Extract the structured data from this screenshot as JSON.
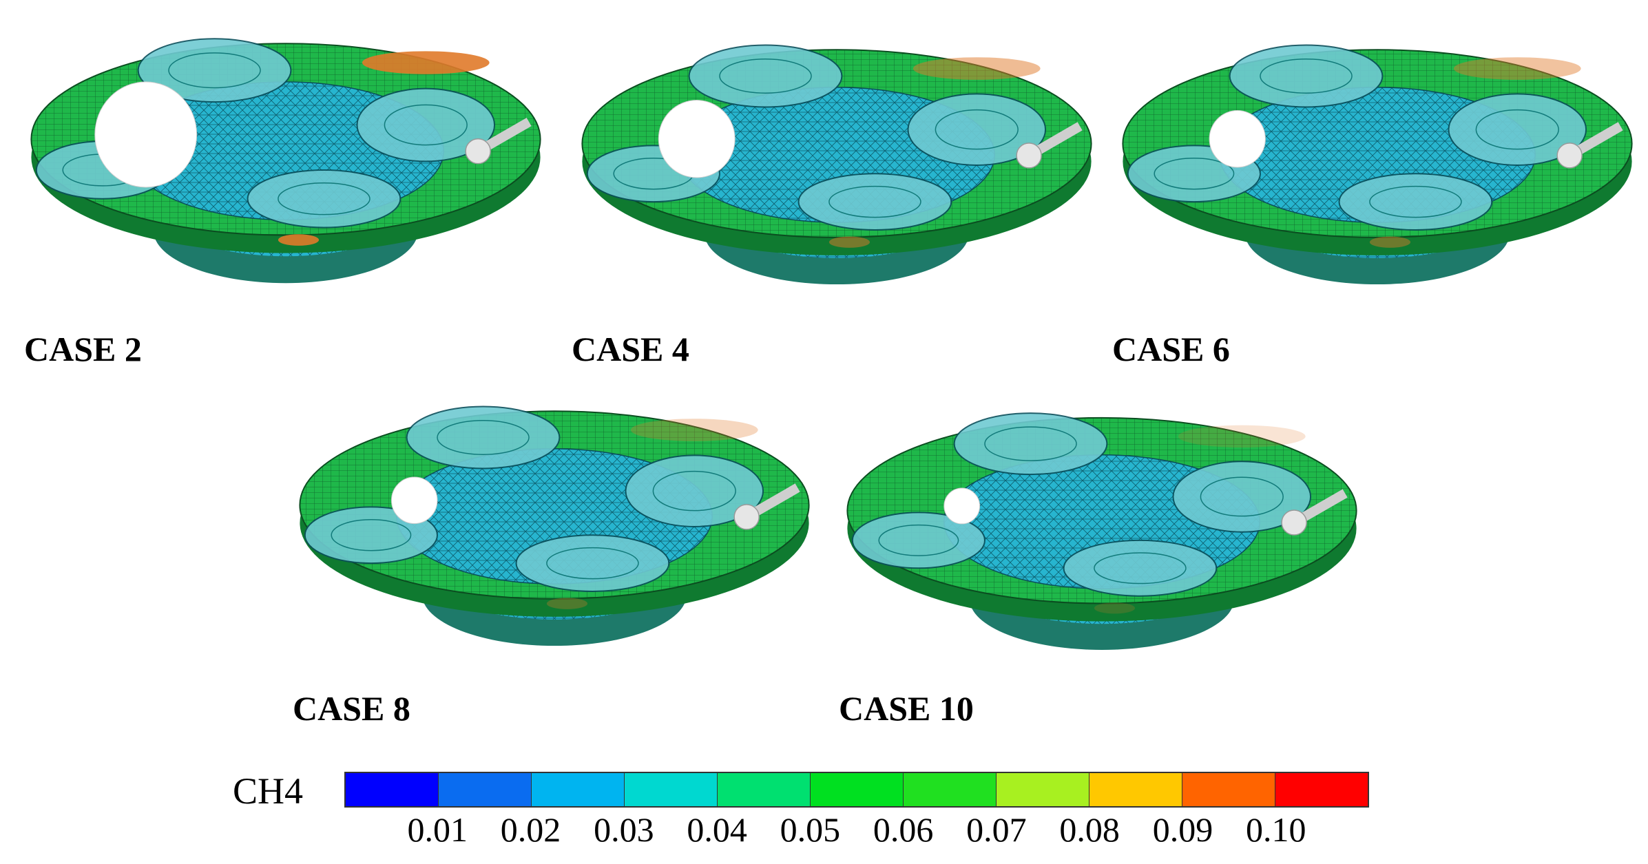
{
  "panels": [
    {
      "label": "CASE 2"
    },
    {
      "label": "CASE 4"
    },
    {
      "label": "CASE 6"
    },
    {
      "label": "CASE 8"
    },
    {
      "label": "CASE 10"
    }
  ],
  "colorbar": {
    "title": "CH4",
    "ticks": [
      "0.01",
      "0.02",
      "0.03",
      "0.04",
      "0.05",
      "0.06",
      "0.07",
      "0.08",
      "0.09",
      "0.10"
    ],
    "colors": [
      "#0000ff",
      "#0a6cf0",
      "#00b4f0",
      "#00d8d0",
      "#00e070",
      "#00e020",
      "#20e020",
      "#a8f020",
      "#ffc800",
      "#ff6400",
      "#ff0000"
    ]
  },
  "field_colors": {
    "ring": "#1fb84a",
    "mesh": "#27b5cf",
    "hot": "#e07a2a",
    "valve_light": "#6fcad2",
    "gap": "#ffffff",
    "bowl": "#1e7a6a"
  }
}
